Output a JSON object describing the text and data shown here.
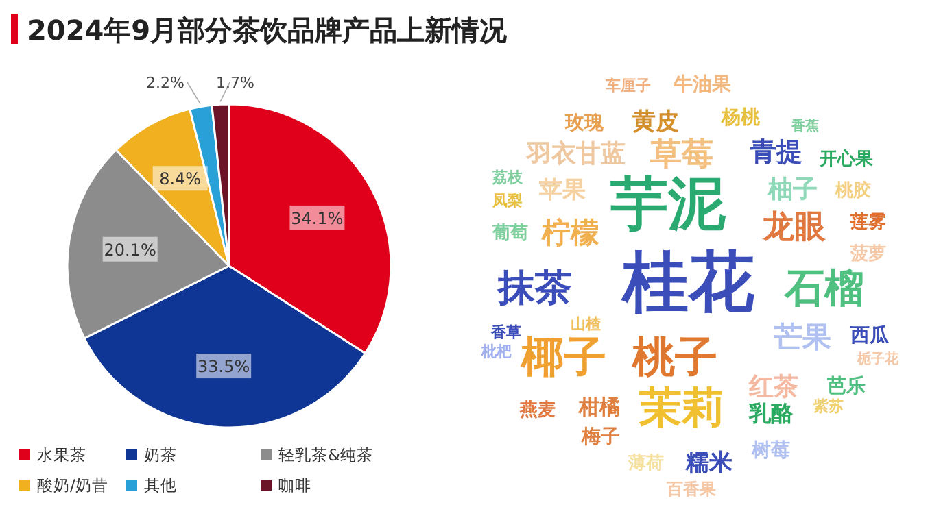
{
  "chart_data": [
    {
      "type": "pie",
      "title": "2024年9月部分茶饮品牌产品上新情况",
      "categories": [
        "水果茶",
        "奶茶",
        "轻乳茶&纯茶",
        "酸奶/奶昔",
        "其他",
        "咖啡"
      ],
      "values": [
        34.1,
        33.5,
        20.1,
        8.4,
        2.2,
        1.7
      ],
      "colors": [
        "#e0001b",
        "#0f3595",
        "#8c8c8c",
        "#f0b020",
        "#2aa0d8",
        "#6b1428"
      ],
      "value_labels": [
        "34.1%",
        "33.5%",
        "20.1%",
        "8.4%",
        "2.2%",
        "1.7%"
      ],
      "legend": "bottom"
    },
    {
      "type": "other",
      "annotations": [
        "车厘子",
        "牛油果",
        "玫瑰",
        "黄皮",
        "杨桃",
        "香蕉",
        "羽衣甘蓝",
        "草莓",
        "青提",
        "开心果",
        "荔枝",
        "苹果",
        "芋泥",
        "柚子",
        "桃胶",
        "凤梨",
        "龙眼",
        "莲雾",
        "葡萄",
        "柠檬",
        "菠萝",
        "抹茶",
        "桂花",
        "石榴",
        "香草",
        "山楂",
        "枇杷",
        "芒果",
        "西瓜",
        "椰子",
        "桃子",
        "栀子花",
        "红茶",
        "芭乐",
        "燕麦",
        "柑橘",
        "茉莉",
        "乳酪",
        "紫苏",
        "梅子",
        "糯米",
        "树莓",
        "薄荷",
        "百香果"
      ]
    }
  ]
}
